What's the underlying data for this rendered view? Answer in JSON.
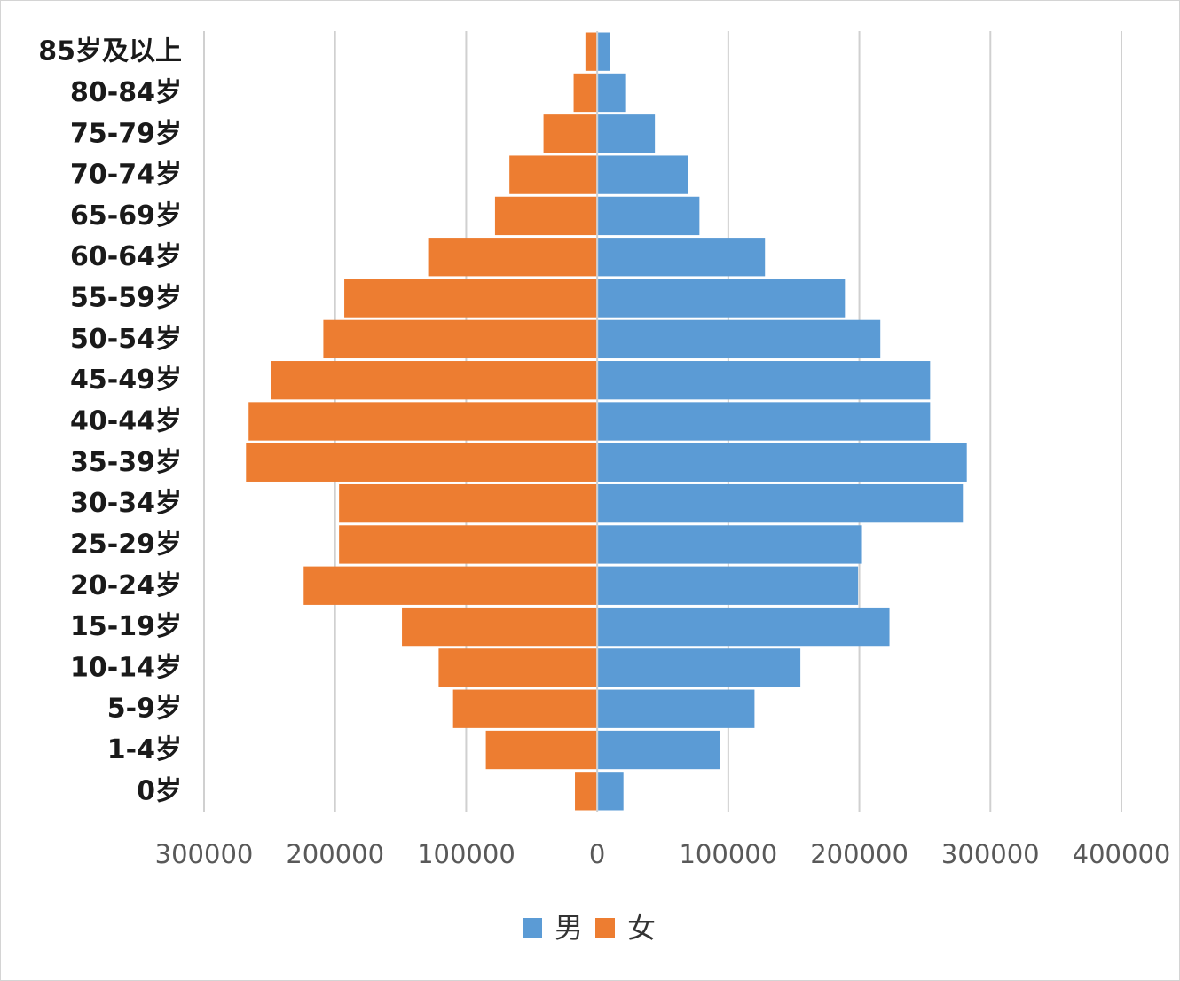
{
  "chart_data": {
    "type": "bar",
    "orientation": "horizontal",
    "layout": "population-pyramid",
    "title": "",
    "xlabel": "",
    "ylabel": "",
    "categories": [
      "85岁及以上",
      "80-84岁",
      "75-79岁",
      "70-74岁",
      "65-69岁",
      "60-64岁",
      "55-59岁",
      "50-54岁",
      "45-49岁",
      "40-44岁",
      "35-39岁",
      "30-34岁",
      "25-29岁",
      "20-24岁",
      "15-19岁",
      "10-14岁",
      "5-9岁",
      "1-4岁",
      "0岁"
    ],
    "series": [
      {
        "name": "男",
        "color": "#5b9bd5",
        "side": "right",
        "values": [
          10000,
          22000,
          44000,
          69000,
          78000,
          128000,
          189000,
          216000,
          254000,
          254000,
          282000,
          279000,
          202000,
          199000,
          223000,
          155000,
          120000,
          94000,
          20000
        ]
      },
      {
        "name": "女",
        "color": "#ed7d31",
        "side": "left",
        "values": [
          9000,
          18000,
          41000,
          67000,
          78000,
          129000,
          193000,
          209000,
          249000,
          266000,
          268000,
          197000,
          197000,
          224000,
          149000,
          121000,
          110000,
          85000,
          17000
        ]
      }
    ],
    "xlim": [
      -300000,
      400000
    ],
    "xticks": [
      {
        "value": -300000,
        "label": "300000"
      },
      {
        "value": -200000,
        "label": "200000"
      },
      {
        "value": -100000,
        "label": "100000"
      },
      {
        "value": 0,
        "label": "0"
      },
      {
        "value": 100000,
        "label": "100000"
      },
      {
        "value": 200000,
        "label": "200000"
      },
      {
        "value": 300000,
        "label": "300000"
      },
      {
        "value": 400000,
        "label": "400000"
      }
    ],
    "grid": true,
    "legend": "bottom-center"
  }
}
